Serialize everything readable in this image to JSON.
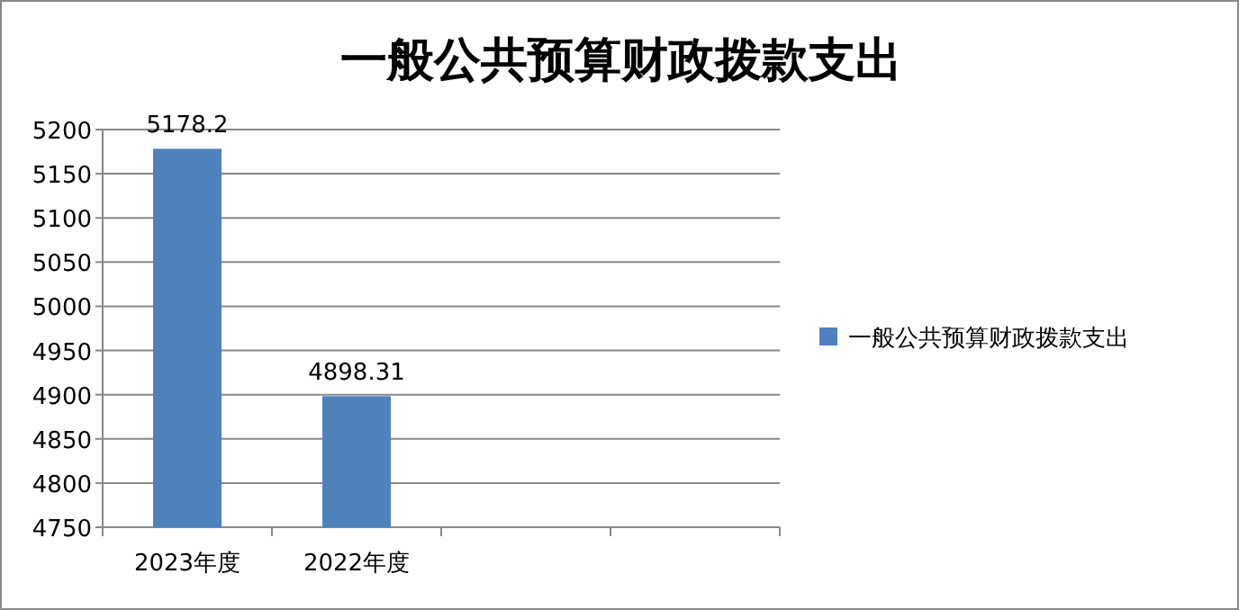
{
  "chart_data": {
    "type": "bar",
    "title": "一般公共预算财政拨款支出",
    "categories": [
      "2023年度",
      "2022年度",
      null,
      null
    ],
    "series": [
      {
        "name": "一般公共预算财政拨款支出",
        "color": "#4f81bd",
        "values": [
          5178.2,
          4898.31,
          null,
          null
        ]
      }
    ],
    "ylim": [
      4750,
      5200
    ],
    "yticks": [
      4750,
      4800,
      4850,
      4900,
      4950,
      5000,
      5050,
      5100,
      5150,
      5200
    ],
    "grid": "y",
    "legend": "right",
    "data_labels": true
  }
}
